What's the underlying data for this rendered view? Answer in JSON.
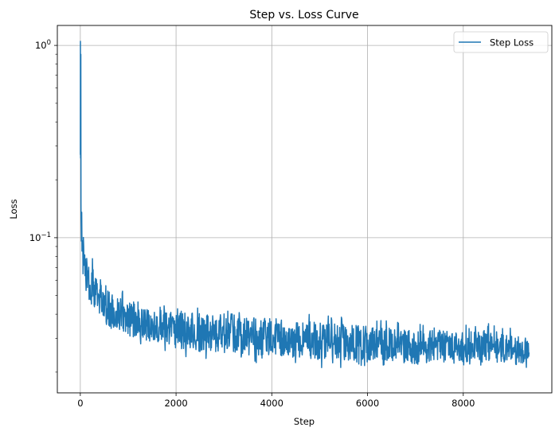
{
  "chart_data": {
    "type": "line",
    "title": "Step vs. Loss Curve",
    "xlabel": "Step",
    "ylabel": "Loss",
    "yscale": "log",
    "xlim": [
      -480,
      9850
    ],
    "ylim": [
      0.0156,
      1.27
    ],
    "grid": true,
    "legend_position": "upper right",
    "x_ticks": [
      0,
      2000,
      4000,
      6000,
      8000
    ],
    "x_tick_labels": [
      "0",
      "2000",
      "4000",
      "6000",
      "8000"
    ],
    "y_ticks": [
      1,
      0.1
    ],
    "y_tick_labels": [
      {
        "base": "10",
        "exp": "0"
      },
      {
        "base": "10",
        "exp": "−1"
      }
    ],
    "series": [
      {
        "name": "Step Loss",
        "color": "#1f77b4",
        "x": [
          0,
          5,
          10,
          20,
          40,
          60,
          80,
          100,
          150,
          200,
          300,
          400,
          500,
          600,
          800,
          1000,
          1200,
          1500,
          1800,
          2000,
          2500,
          3000,
          3500,
          4000,
          4500,
          5000,
          5500,
          6000,
          6500,
          7000,
          7500,
          8000,
          8500,
          9000,
          9380
        ],
        "upper": [
          1.05,
          0.9,
          0.26,
          0.17,
          0.14,
          0.12,
          0.115,
          0.1,
          0.09,
          0.085,
          0.075,
          0.068,
          0.065,
          0.06,
          0.055,
          0.053,
          0.048,
          0.045,
          0.046,
          0.046,
          0.045,
          0.042,
          0.043,
          0.042,
          0.041,
          0.04,
          0.039,
          0.038,
          0.037,
          0.036,
          0.036,
          0.035,
          0.036,
          0.034,
          0.032
        ],
        "lower": [
          0.25,
          0.15,
          0.1,
          0.08,
          0.07,
          0.06,
          0.055,
          0.05,
          0.045,
          0.042,
          0.038,
          0.034,
          0.032,
          0.03,
          0.029,
          0.028,
          0.027,
          0.026,
          0.025,
          0.024,
          0.023,
          0.023,
          0.022,
          0.022,
          0.022,
          0.021,
          0.021,
          0.021,
          0.021,
          0.02,
          0.021,
          0.02,
          0.021,
          0.02,
          0.021
        ],
        "approx_trend": "sharp drop from ~1.0 at step 0 to ~0.1 by step ~50, then slow decay to ~0.025 by step 9380 with noise band"
      }
    ]
  }
}
